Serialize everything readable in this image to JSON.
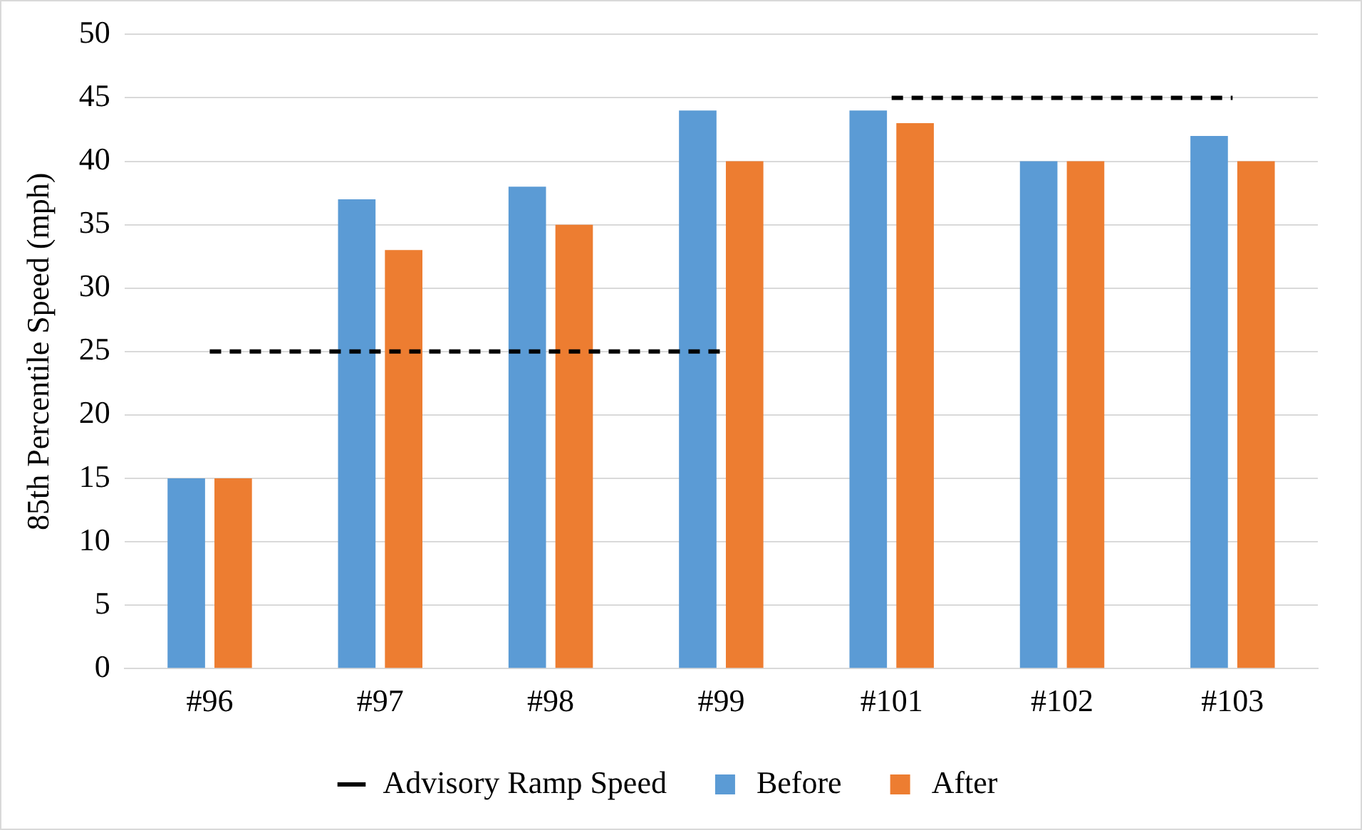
{
  "chart_data": {
    "type": "bar",
    "categories": [
      "#96",
      "#97",
      "#98",
      "#99",
      "#101",
      "#102",
      "#103"
    ],
    "ylabel": "85th Percentile Speed (mph)",
    "series": [
      {
        "name": "Before",
        "color": "#5b9bd5",
        "values": [
          15,
          37,
          38,
          44,
          44,
          40,
          42
        ]
      },
      {
        "name": "After",
        "color": "#ed7d31",
        "values": [
          15,
          33,
          35,
          40,
          43,
          40,
          40
        ]
      },
      {
        "name": "Advisory Ramp Speed",
        "type": "line",
        "color": "#000000",
        "line_style": "dashed",
        "marker": "none",
        "values": [
          25,
          25,
          25,
          25,
          null,
          null,
          null
        ]
      },
      {
        "type": "line",
        "color": "#000000",
        "line_style": "dashed",
        "marker": "none",
        "values": [
          null,
          null,
          null,
          null,
          45,
          45,
          45
        ]
      }
    ],
    "ylim": [
      0,
      50
    ],
    "yticks": [
      0,
      5,
      10,
      15,
      20,
      25,
      30,
      35,
      40,
      45,
      50
    ],
    "grid": "y",
    "legend": "bottom"
  }
}
